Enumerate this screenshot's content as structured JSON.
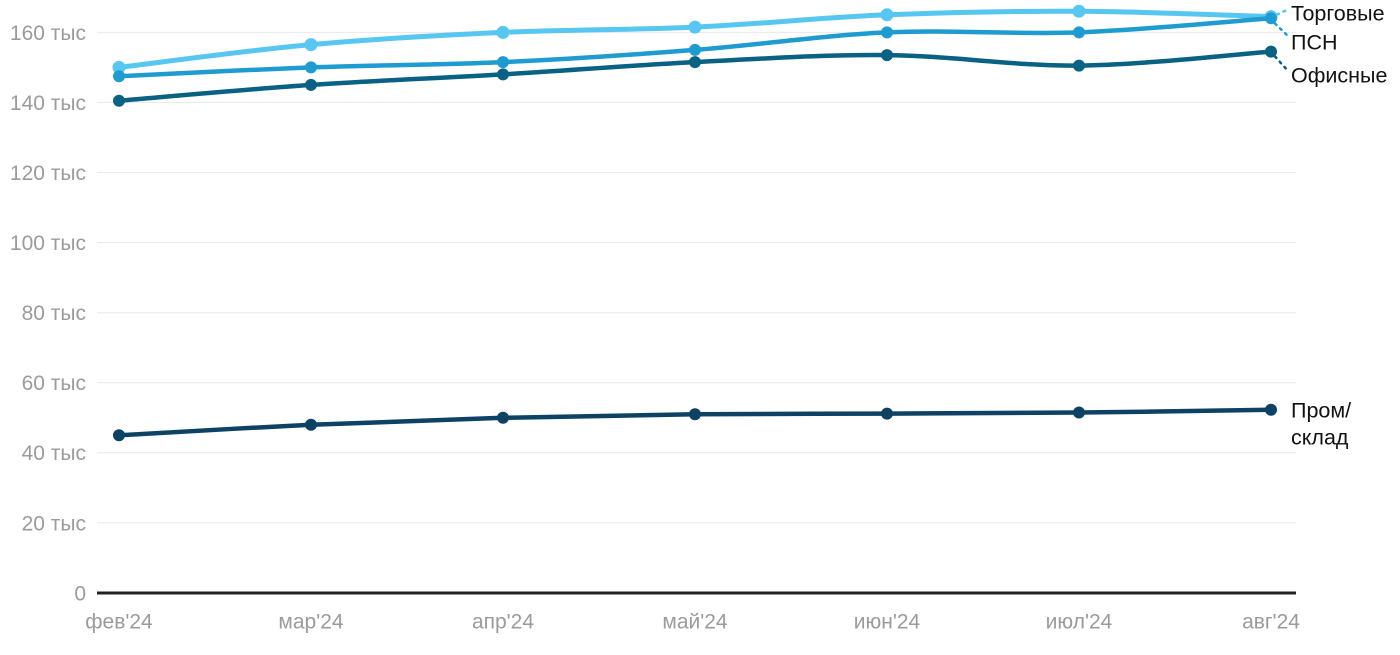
{
  "chart_data": {
    "type": "line",
    "title": "",
    "unit": "тыс",
    "categories": [
      "фев'24",
      "мар'24",
      "апр'24",
      "май'24",
      "июн'24",
      "июл'24",
      "авг'24"
    ],
    "series": [
      {
        "id": "torgovye",
        "name": "Торговые",
        "color": "#57C7F1",
        "values": [
          150,
          156.5,
          160,
          161.5,
          165,
          166,
          164.5
        ]
      },
      {
        "id": "psn",
        "name": "ПСН",
        "color": "#1E9BD1",
        "values": [
          147.5,
          150,
          151.5,
          155,
          160,
          160,
          164
        ]
      },
      {
        "id": "ofisnye",
        "name": "Офисные",
        "color": "#096183",
        "values": [
          140.5,
          145,
          148,
          151.5,
          153.5,
          150.5,
          154.5
        ]
      },
      {
        "id": "prom-sklad",
        "name": "Пром/склад",
        "name_lines": [
          "Пром/",
          "склад"
        ],
        "color": "#0D4265",
        "values": [
          45,
          48,
          50,
          51,
          51.2,
          51.5,
          52.3
        ]
      }
    ],
    "y_ticks": [
      {
        "v": 0,
        "label": "0"
      },
      {
        "v": 20,
        "label": "20 тыс"
      },
      {
        "v": 40,
        "label": "40 тыс"
      },
      {
        "v": 60,
        "label": "60 тыс"
      },
      {
        "v": 80,
        "label": "80 тыс"
      },
      {
        "v": 100,
        "label": "100 тыс"
      },
      {
        "v": 120,
        "label": "120 тыс"
      },
      {
        "v": 140,
        "label": "140 тыс"
      },
      {
        "v": 160,
        "label": "160 тыс"
      }
    ],
    "ylim": [
      0,
      170
    ],
    "grid": true,
    "legend_position": "right-of-line-ends",
    "colors": {
      "grid": "#E8E8E8",
      "axis_line": "#212121",
      "tick_labels": "#9B9B9B",
      "legend_text": "#121212"
    }
  }
}
